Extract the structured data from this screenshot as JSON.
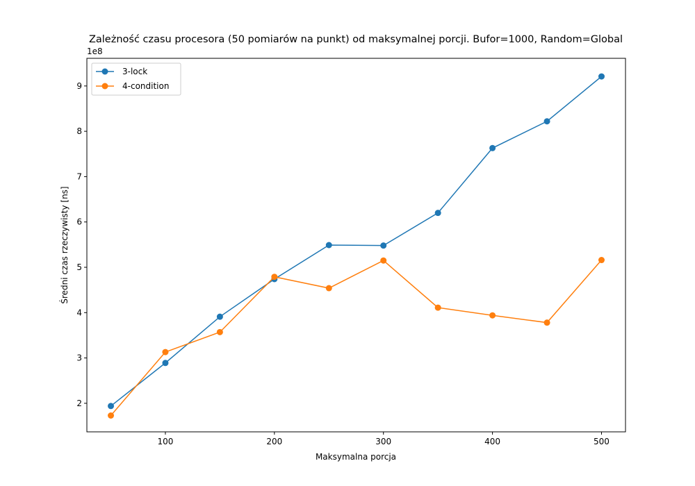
{
  "chart_data": {
    "type": "line",
    "title": "Zależność czasu procesora (50 pomiarów na punkt) od maksymalnej porcji. Bufor=1000, Random=Global",
    "xlabel": "Maksymalna porcja",
    "ylabel": "Średni czas rzeczywisty [ns]",
    "y_offset_label": "1e8",
    "x": [
      50,
      100,
      150,
      200,
      250,
      300,
      350,
      400,
      450,
      500
    ],
    "xlim": [
      28,
      522
    ],
    "ylim": [
      1.37,
      9.61
    ],
    "x_ticks": [
      100,
      200,
      300,
      400,
      500
    ],
    "y_ticks": [
      2,
      3,
      4,
      5,
      6,
      7,
      8,
      9
    ],
    "grid": false,
    "legend_position": "top-left",
    "series": [
      {
        "name": "3-lock",
        "color": "#1f77b4",
        "values": [
          1.94,
          2.89,
          3.91,
          4.74,
          5.49,
          5.48,
          6.2,
          7.63,
          8.22,
          9.21
        ]
      },
      {
        "name": "4-condition",
        "color": "#ff7f0e",
        "values": [
          1.73,
          3.13,
          3.57,
          4.79,
          4.54,
          5.15,
          4.11,
          3.94,
          3.78,
          5.16
        ]
      }
    ]
  }
}
